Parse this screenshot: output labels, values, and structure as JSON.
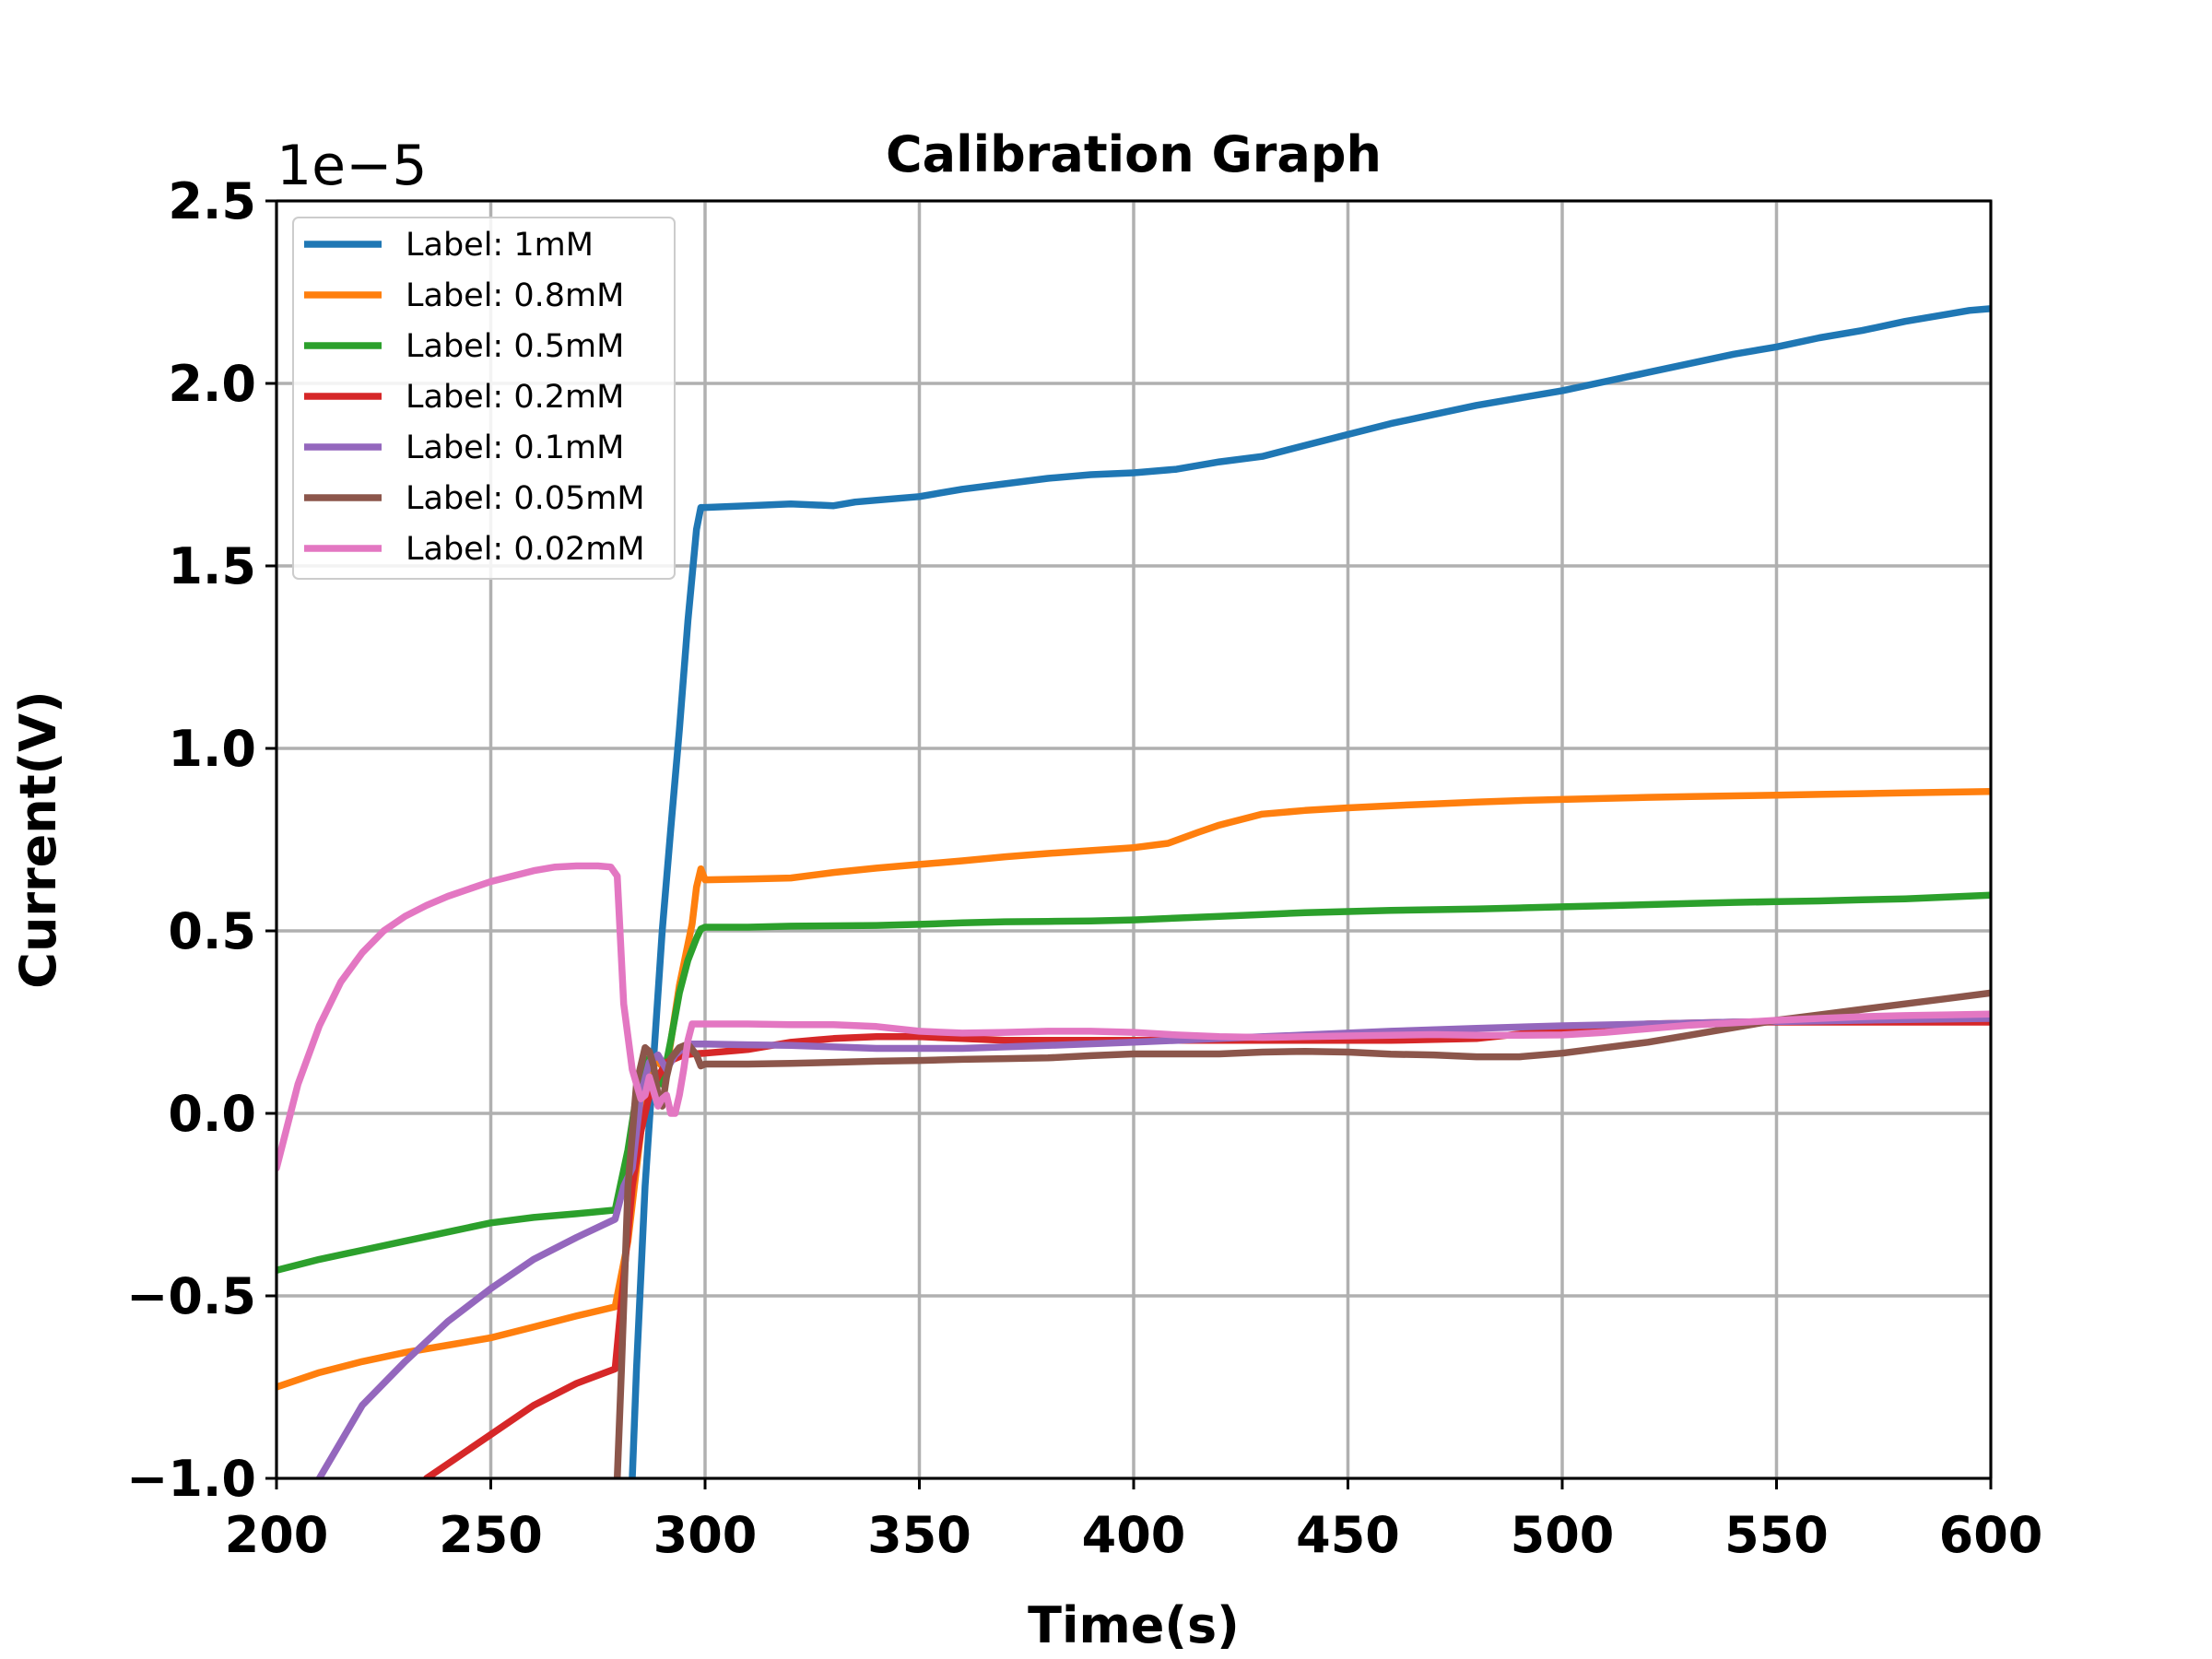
{
  "chart_data": {
    "type": "line",
    "title": "Calibration Graph",
    "xlabel": "Time(s)",
    "ylabel": "Current(V)",
    "y_offset_text": "1e−5",
    "xlim": [
      200,
      600
    ],
    "ylim": [
      -1.0,
      2.5
    ],
    "y_scale_factor": 1e-05,
    "xticks": [
      200,
      250,
      300,
      350,
      400,
      450,
      500,
      550,
      600
    ],
    "xtick_labels": [
      "200",
      "250",
      "300",
      "350",
      "400",
      "450",
      "500",
      "550",
      "600"
    ],
    "yticks": [
      -1.0,
      -0.5,
      0.0,
      0.5,
      1.0,
      1.5,
      2.0,
      2.5
    ],
    "ytick_labels": [
      "−1.0",
      "−0.5",
      "0.0",
      "0.5",
      "1.0",
      "1.5",
      "2.0",
      "2.5"
    ],
    "grid": true,
    "legend_position": "upper-left",
    "series": [
      {
        "name": "Label: 1mM",
        "color": "#1f77b4",
        "x": [
          283,
          284,
          286,
          288,
          290,
          292,
          294,
          296,
          298,
          299,
          300,
          310,
          320,
          330,
          335,
          340,
          350,
          360,
          370,
          380,
          390,
          400,
          410,
          415,
          420,
          430,
          440,
          450,
          460,
          470,
          480,
          490,
          500,
          510,
          520,
          530,
          540,
          550,
          560,
          570,
          580,
          590,
          595,
          600
        ],
        "y": [
          -1.0,
          -0.7,
          -0.2,
          0.15,
          0.5,
          0.78,
          1.05,
          1.35,
          1.6,
          1.66,
          1.66,
          1.665,
          1.67,
          1.665,
          1.675,
          1.68,
          1.69,
          1.71,
          1.725,
          1.74,
          1.75,
          1.755,
          1.765,
          1.775,
          1.785,
          1.8,
          1.83,
          1.86,
          1.89,
          1.915,
          1.94,
          1.96,
          1.98,
          2.005,
          2.03,
          2.055,
          2.08,
          2.1,
          2.125,
          2.145,
          2.17,
          2.19,
          2.2,
          2.205
        ]
      },
      {
        "name": "Label: 0.8mM",
        "color": "#ff7f0e",
        "x": [
          200,
          210,
          220,
          230,
          240,
          250,
          260,
          270,
          279,
          282,
          285,
          288,
          291,
          294,
          297,
          298,
          299,
          300,
          310,
          320,
          330,
          340,
          350,
          360,
          370,
          380,
          390,
          400,
          408,
          415,
          420,
          425,
          430,
          440,
          450,
          460,
          470,
          480,
          490,
          500,
          510,
          520,
          530,
          540,
          550,
          560,
          570,
          580,
          590,
          600
        ],
        "y": [
          -0.75,
          -0.71,
          -0.68,
          -0.655,
          -0.635,
          -0.615,
          -0.585,
          -0.555,
          -0.53,
          -0.35,
          -0.05,
          0.15,
          0.12,
          0.35,
          0.52,
          0.62,
          0.67,
          0.64,
          0.642,
          0.645,
          0.66,
          0.672,
          0.682,
          0.692,
          0.703,
          0.712,
          0.72,
          0.728,
          0.74,
          0.77,
          0.79,
          0.805,
          0.82,
          0.83,
          0.837,
          0.843,
          0.848,
          0.853,
          0.857,
          0.86,
          0.863,
          0.866,
          0.868,
          0.87,
          0.872,
          0.874,
          0.876,
          0.878,
          0.88,
          0.882
        ]
      },
      {
        "name": "Label: 0.5mM",
        "color": "#2ca02c",
        "x": [
          200,
          210,
          220,
          230,
          240,
          250,
          260,
          270,
          279,
          282,
          284,
          286,
          288,
          290,
          292,
          294,
          296,
          298,
          299,
          300,
          310,
          320,
          330,
          340,
          350,
          360,
          370,
          380,
          390,
          400,
          410,
          420,
          430,
          440,
          450,
          460,
          470,
          480,
          490,
          500,
          510,
          520,
          530,
          540,
          550,
          560,
          570,
          580,
          590,
          600
        ],
        "y": [
          -0.43,
          -0.4,
          -0.375,
          -0.35,
          -0.325,
          -0.3,
          -0.285,
          -0.275,
          -0.265,
          -0.1,
          0.05,
          0.15,
          0.12,
          0.08,
          0.2,
          0.33,
          0.42,
          0.48,
          0.505,
          0.51,
          0.51,
          0.513,
          0.514,
          0.515,
          0.518,
          0.522,
          0.525,
          0.526,
          0.527,
          0.53,
          0.535,
          0.54,
          0.545,
          0.55,
          0.553,
          0.556,
          0.558,
          0.56,
          0.563,
          0.566,
          0.569,
          0.572,
          0.575,
          0.578,
          0.58,
          0.582,
          0.585,
          0.588,
          0.593,
          0.598
        ]
      },
      {
        "name": "Label: 0.2mM",
        "color": "#d62728",
        "x": [
          235,
          240,
          250,
          260,
          270,
          279,
          281,
          283,
          285,
          287,
          289,
          291,
          293,
          295,
          297,
          300,
          310,
          320,
          330,
          340,
          350,
          360,
          370,
          380,
          390,
          400,
          420,
          440,
          460,
          480,
          500,
          520,
          540,
          560,
          580,
          600
        ],
        "y": [
          -1.0,
          -0.96,
          -0.88,
          -0.8,
          -0.74,
          -0.7,
          -0.45,
          -0.2,
          -0.05,
          0.05,
          0.1,
          0.14,
          0.15,
          0.16,
          0.163,
          0.165,
          0.175,
          0.195,
          0.205,
          0.21,
          0.21,
          0.205,
          0.2,
          0.2,
          0.2,
          0.2,
          0.2,
          0.2,
          0.2,
          0.205,
          0.23,
          0.245,
          0.25,
          0.25,
          0.25,
          0.25
        ]
      },
      {
        "name": "Label: 0.1mM",
        "color": "#9467bd",
        "x": [
          210,
          215,
          220,
          230,
          240,
          250,
          260,
          270,
          279,
          281,
          283,
          285,
          287,
          289,
          291,
          293,
          296,
          300,
          310,
          320,
          330,
          340,
          350,
          360,
          370,
          380,
          400,
          420,
          440,
          460,
          480,
          500,
          520,
          540,
          560,
          580,
          600
        ],
        "y": [
          -1.0,
          -0.9,
          -0.8,
          -0.68,
          -0.57,
          -0.48,
          -0.4,
          -0.34,
          -0.29,
          -0.2,
          -0.15,
          0.05,
          0.14,
          0.16,
          0.12,
          0.16,
          0.19,
          0.19,
          0.188,
          0.186,
          0.182,
          0.178,
          0.178,
          0.178,
          0.182,
          0.186,
          0.195,
          0.205,
          0.215,
          0.225,
          0.233,
          0.24,
          0.245,
          0.25,
          0.253,
          0.257,
          0.26
        ]
      },
      {
        "name": "Label: 0.05mM",
        "color": "#8c564b",
        "x": [
          279.5,
          280.5,
          282,
          284,
          286,
          287,
          288,
          289,
          290,
          291,
          292,
          294,
          296,
          298,
          299,
          300,
          310,
          320,
          330,
          340,
          350,
          360,
          370,
          380,
          390,
          400,
          410,
          420,
          430,
          440,
          450,
          460,
          470,
          480,
          490,
          500,
          510,
          520,
          530,
          540,
          550,
          560,
          570,
          580,
          590,
          600
        ],
        "y": [
          -1.0,
          -0.7,
          -0.2,
          0.08,
          0.18,
          0.17,
          0.13,
          0.05,
          0.02,
          0.1,
          0.15,
          0.18,
          0.19,
          0.16,
          0.13,
          0.135,
          0.135,
          0.137,
          0.14,
          0.143,
          0.145,
          0.148,
          0.15,
          0.152,
          0.158,
          0.163,
          0.163,
          0.163,
          0.168,
          0.17,
          0.168,
          0.162,
          0.16,
          0.155,
          0.155,
          0.165,
          0.18,
          0.195,
          0.215,
          0.235,
          0.255,
          0.27,
          0.285,
          0.3,
          0.315,
          0.33
        ]
      },
      {
        "name": "Label: 0.02mM",
        "color": "#e377c2",
        "x": [
          200,
          205,
          210,
          215,
          220,
          225,
          230,
          235,
          240,
          250,
          260,
          265,
          270,
          275,
          278,
          279.5,
          281,
          283,
          285,
          286,
          287,
          288,
          289,
          290,
          291,
          292,
          293,
          294,
          295,
          296,
          297,
          300,
          310,
          320,
          330,
          340,
          350,
          360,
          370,
          380,
          390,
          400,
          410,
          420,
          430,
          440,
          450,
          460,
          470,
          480,
          490,
          500,
          510,
          520,
          530,
          540,
          550,
          560,
          570,
          580,
          590,
          600
        ],
        "y": [
          -0.15,
          0.08,
          0.24,
          0.36,
          0.44,
          0.5,
          0.54,
          0.57,
          0.595,
          0.635,
          0.665,
          0.675,
          0.678,
          0.678,
          0.675,
          0.65,
          0.3,
          0.12,
          0.04,
          0.05,
          0.1,
          0.06,
          0.02,
          0.04,
          0.05,
          0.0,
          0.0,
          0.05,
          0.12,
          0.2,
          0.245,
          0.245,
          0.245,
          0.243,
          0.243,
          0.238,
          0.225,
          0.22,
          0.222,
          0.225,
          0.225,
          0.222,
          0.215,
          0.21,
          0.208,
          0.21,
          0.212,
          0.214,
          0.216,
          0.214,
          0.214,
          0.215,
          0.222,
          0.232,
          0.242,
          0.248,
          0.255,
          0.26,
          0.265,
          0.268,
          0.27,
          0.272
        ]
      }
    ]
  }
}
